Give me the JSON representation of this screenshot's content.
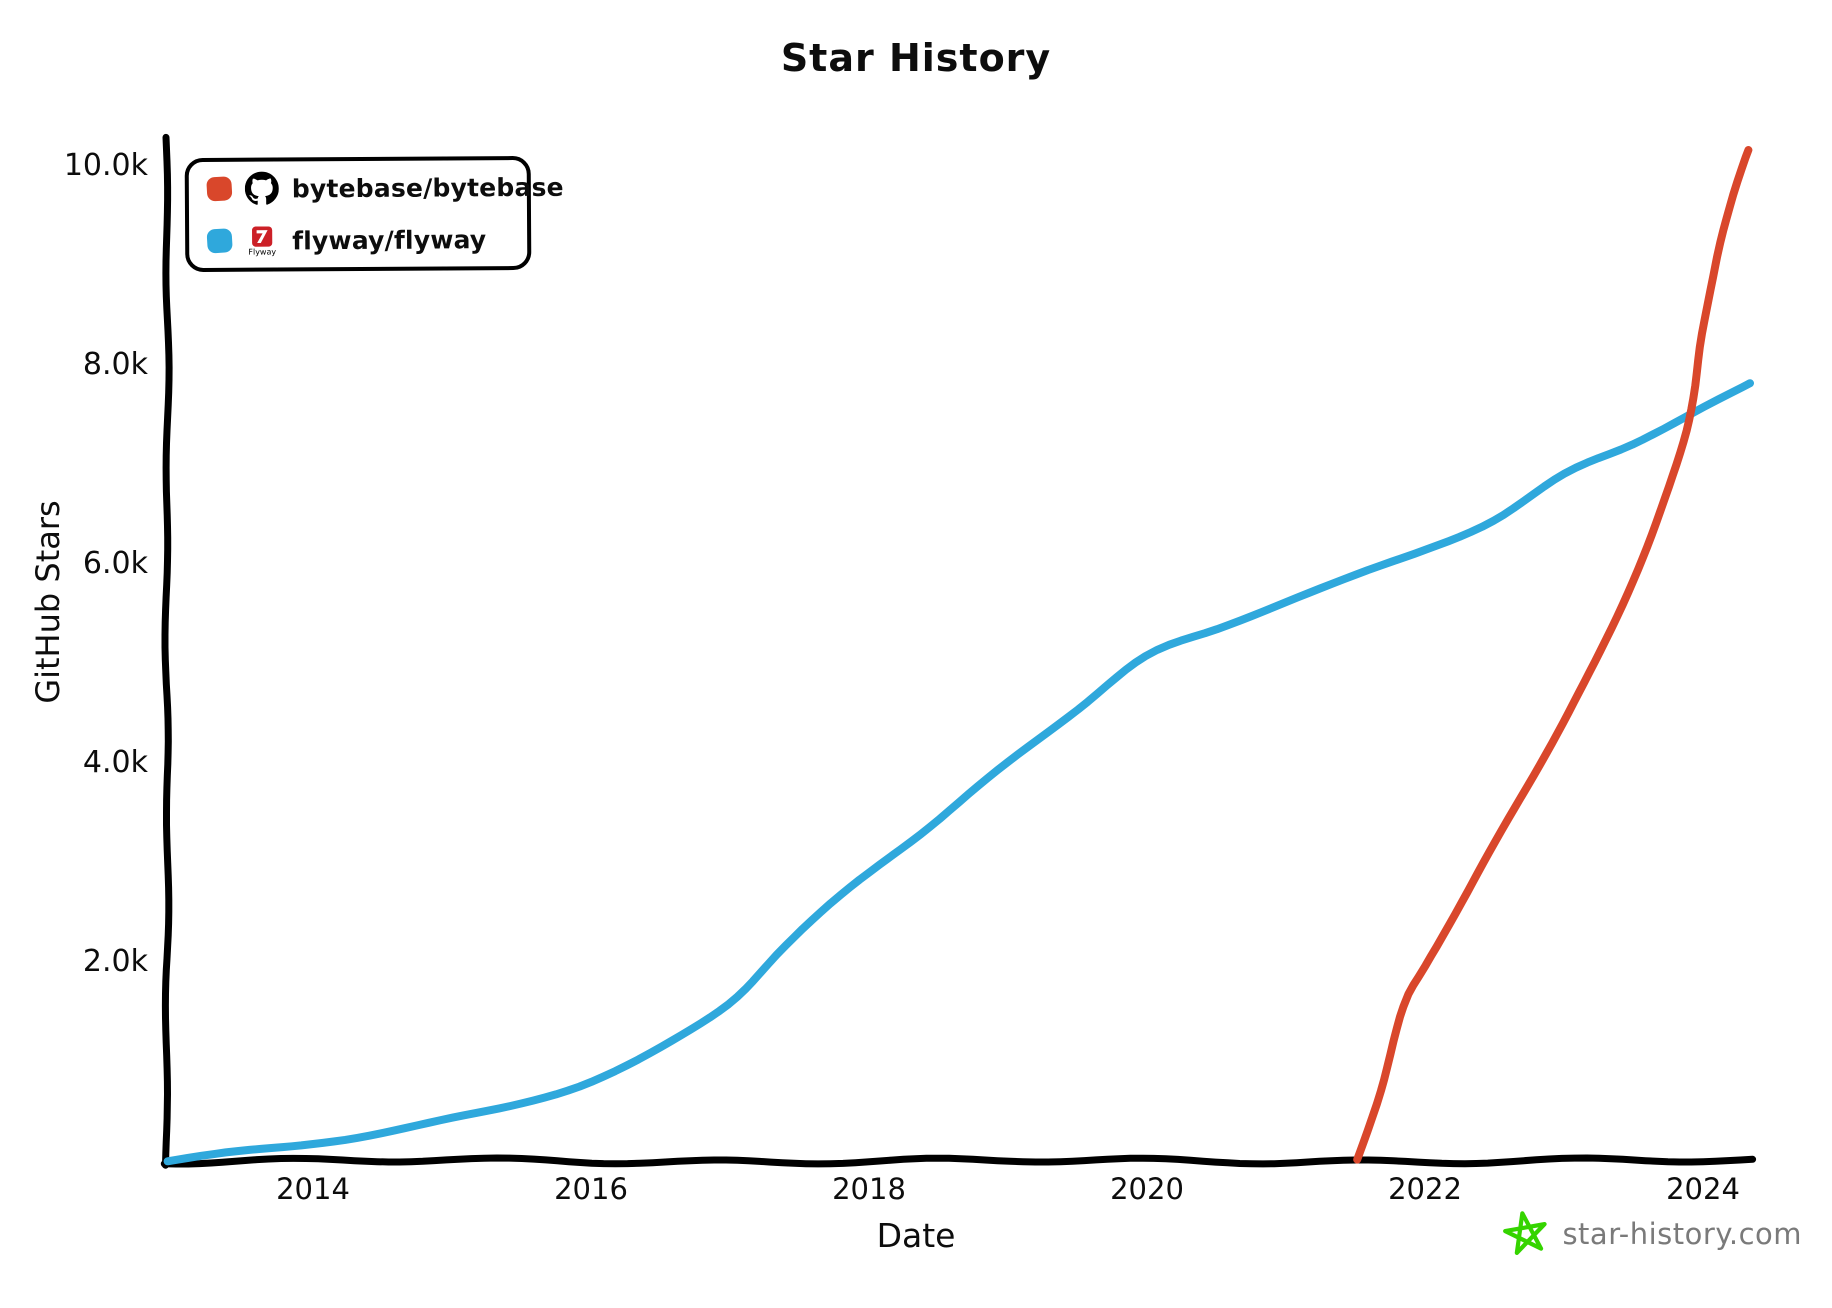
{
  "title": "Star History",
  "watermark": {
    "label": "star-history.com",
    "icon": "star-doodle-icon",
    "icon_color": "#35d400",
    "text_color": "#7a7a7a"
  },
  "chart_data": {
    "type": "line",
    "title": "Star History",
    "xlabel": "Date",
    "ylabel": "GitHub Stars",
    "x_unit": "decimal_year",
    "xlim": [
      2012.95,
      2024.62
    ],
    "ylim": [
      0,
      10240
    ],
    "grid": false,
    "legend_position": "top-left",
    "x_ticks": [
      2014,
      2016,
      2018,
      2020,
      2022,
      2024
    ],
    "y_ticks": [
      {
        "label": "2.0k",
        "value": 2000
      },
      {
        "label": "4.0k",
        "value": 4000
      },
      {
        "label": "6.0k",
        "value": 6000
      },
      {
        "label": "8.0k",
        "value": 8000
      },
      {
        "label": "10.0k",
        "value": 10000
      }
    ],
    "series": [
      {
        "name": "bytebase/bytebase",
        "color": "#d9472b",
        "icon": "github-icon",
        "points": [
          [
            2021.52,
            0
          ],
          [
            2021.68,
            700
          ],
          [
            2021.85,
            1550
          ],
          [
            2022.0,
            1950
          ],
          [
            2022.3,
            2700
          ],
          [
            2022.6,
            3450
          ],
          [
            2023.0,
            4400
          ],
          [
            2023.3,
            5250
          ],
          [
            2023.6,
            6150
          ],
          [
            2023.8,
            7000
          ],
          [
            2023.93,
            7650
          ],
          [
            2024.0,
            8300
          ],
          [
            2024.1,
            9100
          ],
          [
            2024.2,
            9600
          ],
          [
            2024.33,
            10150
          ]
        ]
      },
      {
        "name": "flyway/flyway",
        "color": "#2fa8dc",
        "icon": "flyway-icon",
        "icon_caption": "Flyway",
        "points": [
          [
            2012.95,
            0
          ],
          [
            2013.3,
            60
          ],
          [
            2013.7,
            120
          ],
          [
            2014.0,
            180
          ],
          [
            2014.5,
            290
          ],
          [
            2015.0,
            430
          ],
          [
            2015.5,
            590
          ],
          [
            2016.0,
            800
          ],
          [
            2016.5,
            1130
          ],
          [
            2017.0,
            1580
          ],
          [
            2017.4,
            2160
          ],
          [
            2018.0,
            2900
          ],
          [
            2018.5,
            3450
          ],
          [
            2019.0,
            4000
          ],
          [
            2019.5,
            4550
          ],
          [
            2020.0,
            5060
          ],
          [
            2020.5,
            5330
          ],
          [
            2021.0,
            5620
          ],
          [
            2021.5,
            5880
          ],
          [
            2022.0,
            6140
          ],
          [
            2022.5,
            6450
          ],
          [
            2023.0,
            6900
          ],
          [
            2023.5,
            7200
          ],
          [
            2024.0,
            7580
          ],
          [
            2024.33,
            7800
          ]
        ]
      }
    ]
  }
}
